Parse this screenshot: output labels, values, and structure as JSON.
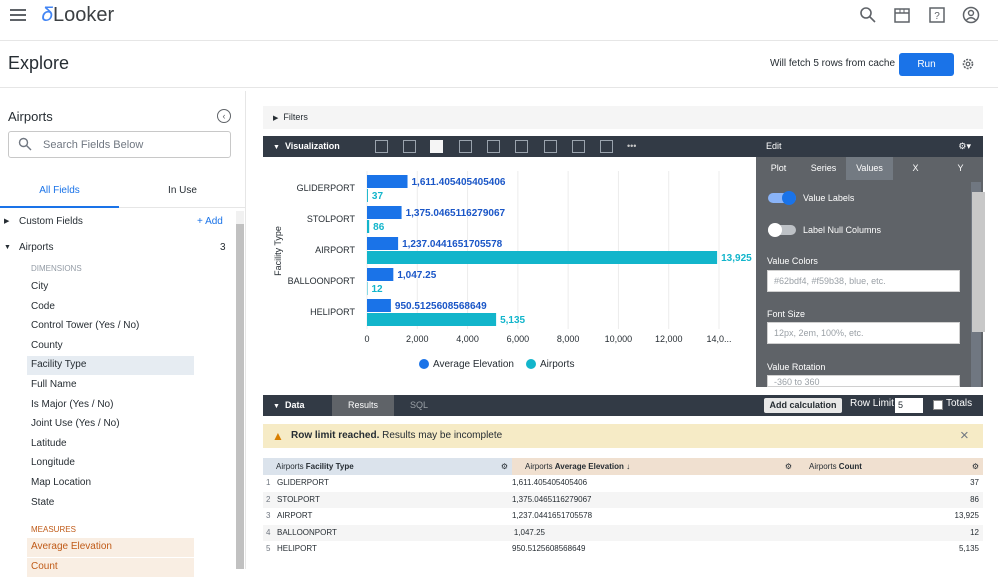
{
  "app": {
    "logo_text": "Looker",
    "brand_color": "#4285f4",
    "top_icons": [
      "search-icon",
      "marketplace-icon",
      "help-icon",
      "account-icon"
    ]
  },
  "header": {
    "title": "Explore",
    "fetch_status": "Will fetch 5 rows from cache",
    "run_label": "Run",
    "run_color": "#1a73e8"
  },
  "sidebar": {
    "title": "Airports",
    "search_placeholder": "Search Fields Below",
    "tabs": [
      {
        "label": "All Fields",
        "active": true
      },
      {
        "label": "In Use",
        "active": false
      }
    ],
    "custom_fields": {
      "label": "Custom Fields",
      "add_label": "+ Add"
    },
    "view": {
      "label": "Airports",
      "count": "3"
    },
    "dimensions_label": "DIMENSIONS",
    "dimensions": [
      "City",
      "Code",
      "Control Tower (Yes / No)",
      "County",
      "Facility Type",
      "Full Name",
      "Is Major (Yes / No)",
      "Joint Use (Yes / No)",
      "Latitude",
      "Longitude",
      "Map Location",
      "State"
    ],
    "selected_dimension": "Facility Type",
    "measures_label": "MEASURES",
    "measures": [
      "Average Elevation",
      "Count"
    ]
  },
  "filters": {
    "label": "Filters"
  },
  "visualization": {
    "label": "Visualization"
  },
  "edit": {
    "title": "Edit",
    "tabs": [
      "Plot",
      "Series",
      "Values",
      "X",
      "Y"
    ],
    "active_tab": "Values",
    "value_labels": {
      "label": "Value Labels",
      "on": true
    },
    "label_null_columns": {
      "label": "Label Null Columns",
      "on": false
    },
    "value_colors": {
      "label": "Value Colors",
      "placeholder": "#62bdf4, #f59b38, blue, etc."
    },
    "font_size": {
      "label": "Font Size",
      "placeholder": "12px, 2em, 100%, etc."
    },
    "value_rotation": {
      "label": "Value Rotation",
      "placeholder": "-360 to 360"
    }
  },
  "chart_data": {
    "type": "bar",
    "orientation": "horizontal",
    "categories": [
      "GLIDERPORT",
      "STOLPORT",
      "AIRPORT",
      "BALLOONPORT",
      "HELIPORT"
    ],
    "series": [
      {
        "name": "Average Elevation",
        "color": "#1a73e8",
        "values": [
          1611.405405405406,
          1375.0465116279067,
          1237.0441651705578,
          1047.25,
          950.5125608568649
        ],
        "labels": [
          "1,611.405405405406",
          "1,375.0465116279067",
          "1,237.0441651705578",
          "1,047.25",
          "950.5125608568649"
        ]
      },
      {
        "name": "Airports",
        "color": "#12b5cb",
        "values": [
          37,
          86,
          13925,
          12,
          5135
        ],
        "labels": [
          "37",
          "86",
          "13,925",
          "12",
          "5,135"
        ]
      }
    ],
    "ylabel": "Facility Type",
    "xlabel": "",
    "x_ticks": [
      "0",
      "2,000",
      "4,000",
      "6,000",
      "8,000",
      "10,000",
      "12,000",
      "14,0..."
    ],
    "xlim": [
      0,
      14000
    ],
    "grid": true,
    "legend_position": "bottom"
  },
  "data_panel": {
    "label": "Data",
    "results_tab": "Results",
    "sql_tab": "SQL",
    "add_calculation": "Add calculation",
    "row_limit_label": "Row Limit",
    "row_limit": "5",
    "totals_label": "Totals",
    "warning_bold": "Row limit reached.",
    "warning_text": " Results may be incomplete"
  },
  "table": {
    "headers": [
      {
        "view": "Airports",
        "field": "Facility Type"
      },
      {
        "view": "Airports",
        "field": "Average Elevation",
        "sort": "↓"
      },
      {
        "view": "Airports",
        "field": "Count"
      }
    ],
    "rows": [
      [
        "1",
        "GLIDERPORT",
        "1,611.405405405406",
        "37"
      ],
      [
        "2",
        "STOLPORT",
        "1,375.0465116279067",
        "86"
      ],
      [
        "3",
        "AIRPORT",
        "1,237.0441651705578",
        "13,925"
      ],
      [
        "4",
        "BALLOONPORT",
        "1,047.25",
        "12"
      ],
      [
        "5",
        "HELIPORT",
        "950.5125608568649",
        "5,135"
      ]
    ]
  }
}
